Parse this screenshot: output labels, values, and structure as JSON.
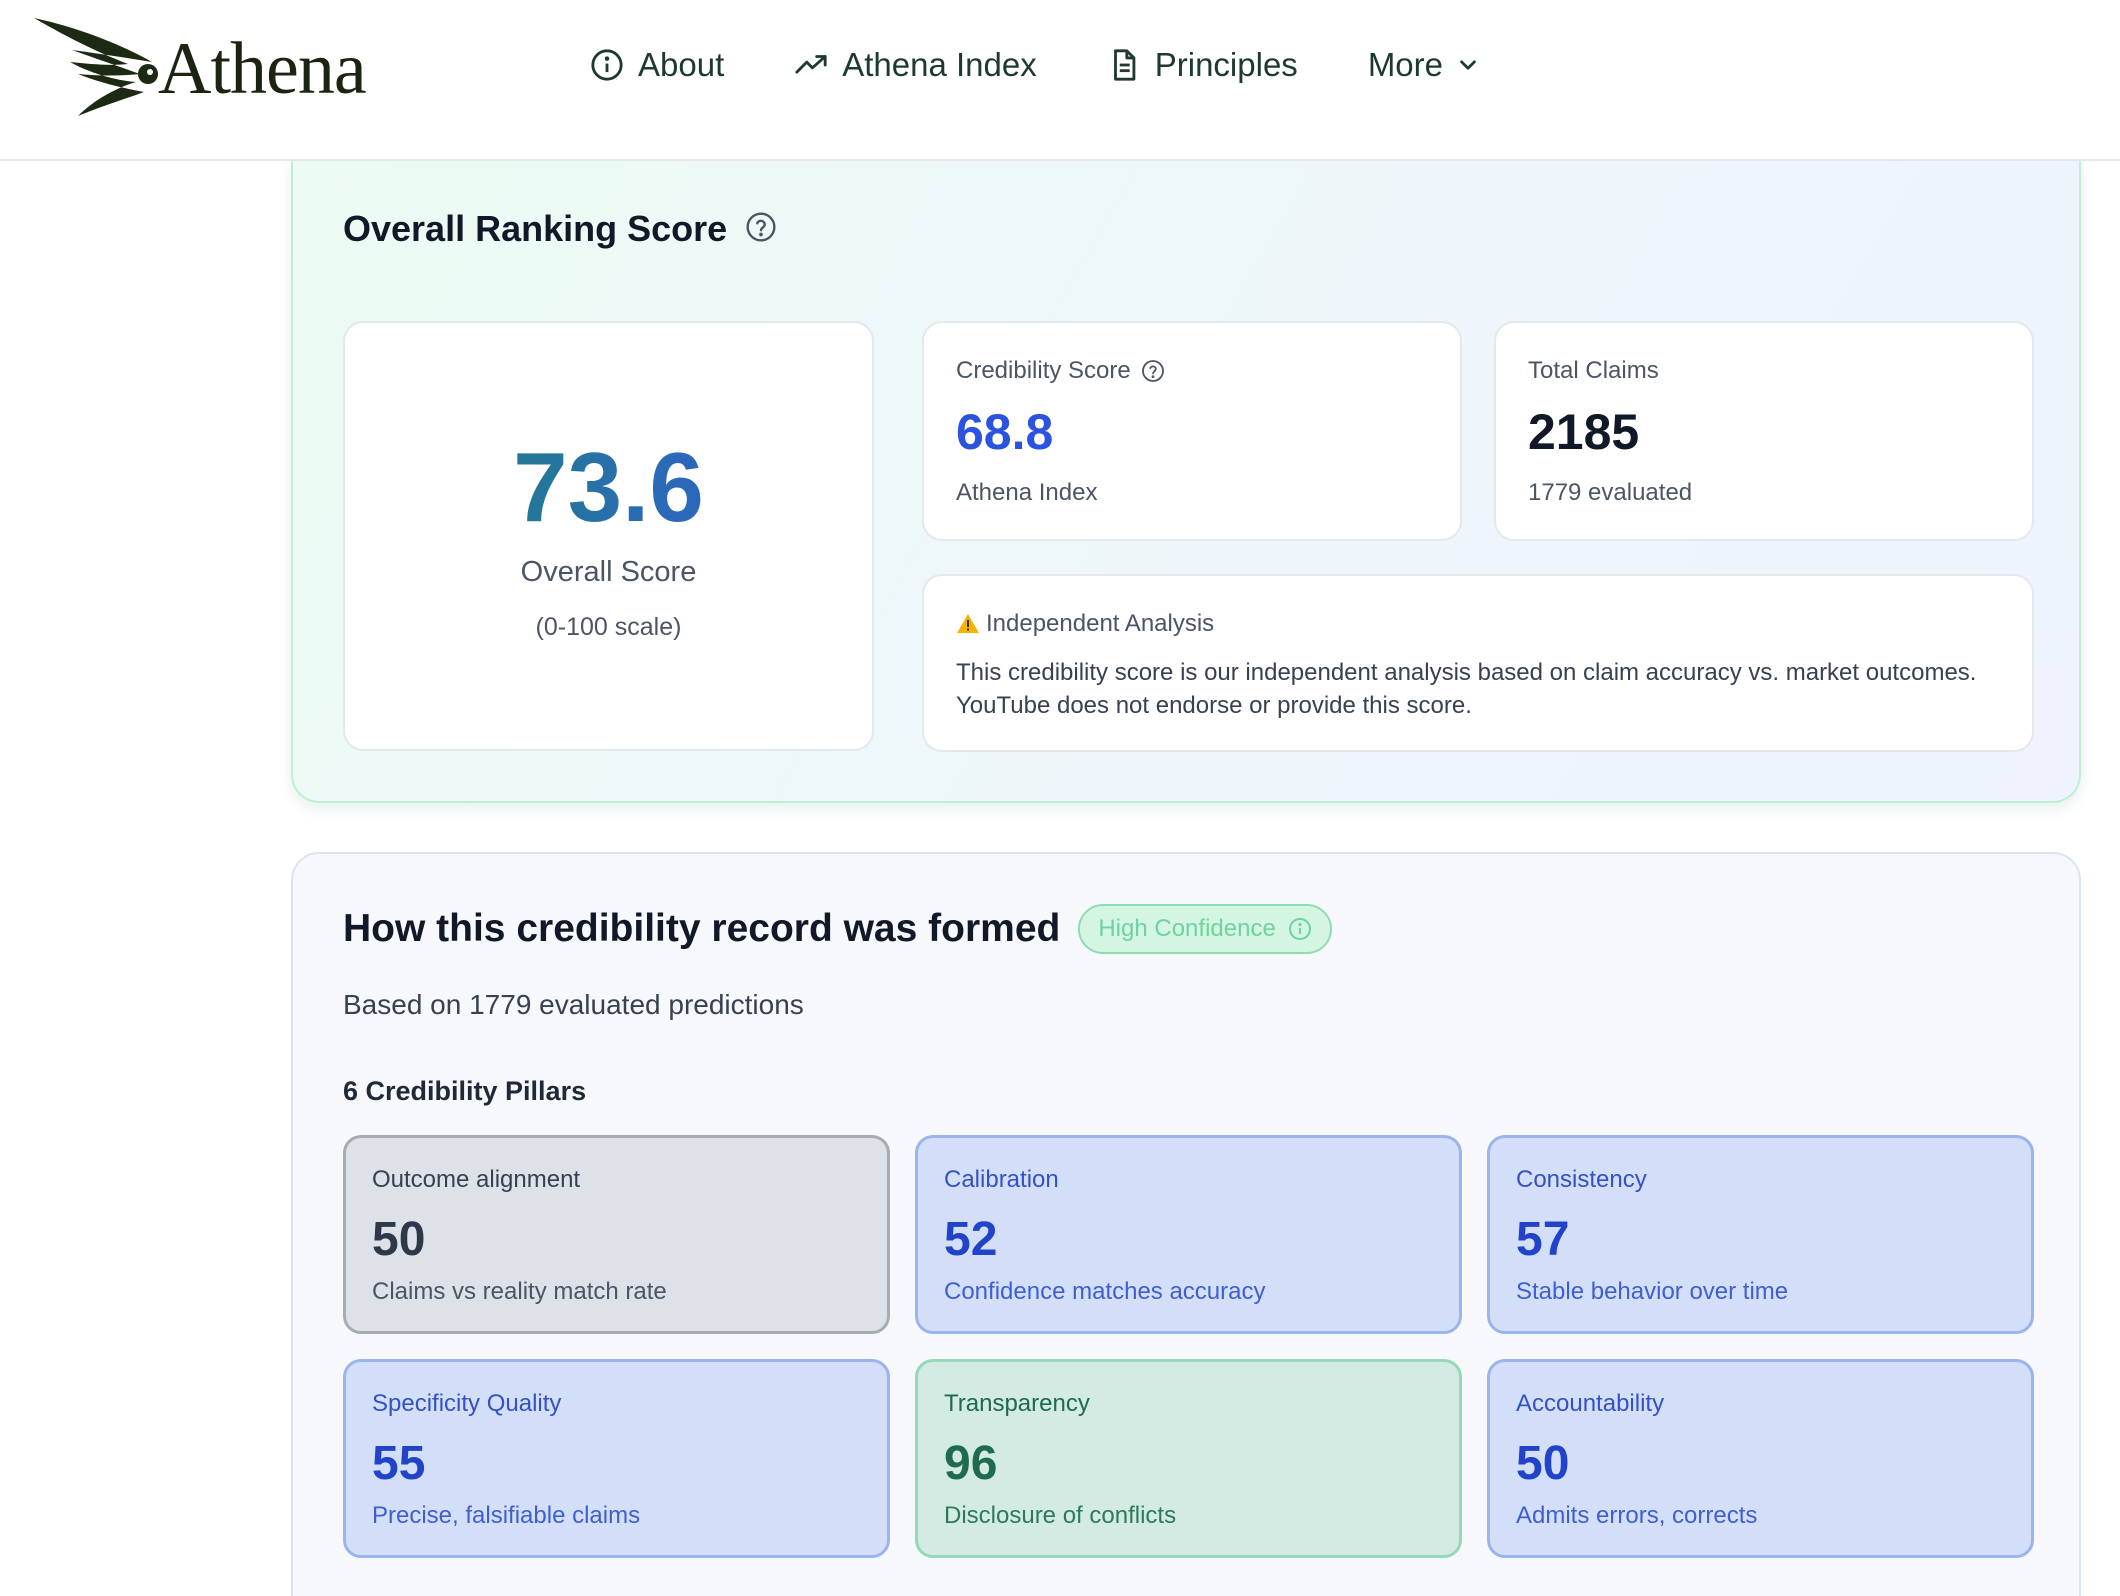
{
  "header": {
    "logo_text": "Athena",
    "nav": [
      {
        "label": "About",
        "icon": "info-circle-icon"
      },
      {
        "label": "Athena Index",
        "icon": "trending-up-icon"
      },
      {
        "label": "Principles",
        "icon": "document-icon"
      },
      {
        "label": "More",
        "icon": "chevron-down-icon"
      }
    ]
  },
  "ranking": {
    "title": "Overall Ranking Score",
    "overall": {
      "value": "73.6",
      "label": "Overall Score",
      "scale": "(0-100 scale)"
    },
    "credibility": {
      "label": "Credibility Score",
      "value": "68.8",
      "sub": "Athena Index"
    },
    "claims": {
      "label": "Total Claims",
      "value": "2185",
      "sub": "1779 evaluated"
    },
    "notice": {
      "title": "Independent Analysis",
      "text": "This credibility score is our independent analysis based on claim accuracy vs. market outcomes. YouTube does not endorse or provide this score."
    }
  },
  "record": {
    "title": "How this credibility record was formed",
    "badge": "High Confidence",
    "subtitle": "Based on 1779 evaluated predictions",
    "pillars_title": "6 Credibility Pillars",
    "pillars": [
      {
        "name": "Outcome alignment",
        "value": "50",
        "desc": "Claims vs reality match rate",
        "tone": "gray"
      },
      {
        "name": "Calibration",
        "value": "52",
        "desc": "Confidence matches accuracy",
        "tone": "blue"
      },
      {
        "name": "Consistency",
        "value": "57",
        "desc": "Stable behavior over time",
        "tone": "blue"
      },
      {
        "name": "Specificity Quality",
        "value": "55",
        "desc": "Precise, falsifiable claims",
        "tone": "blue"
      },
      {
        "name": "Transparency",
        "value": "96",
        "desc": "Disclosure of conflicts",
        "tone": "green"
      },
      {
        "name": "Accountability",
        "value": "50",
        "desc": "Admits errors, corrects",
        "tone": "blue"
      }
    ]
  },
  "colors": {
    "accent_blue": "#2b53e0",
    "accent_green": "#1c8a6e",
    "brand_dark": "#1a2410"
  }
}
